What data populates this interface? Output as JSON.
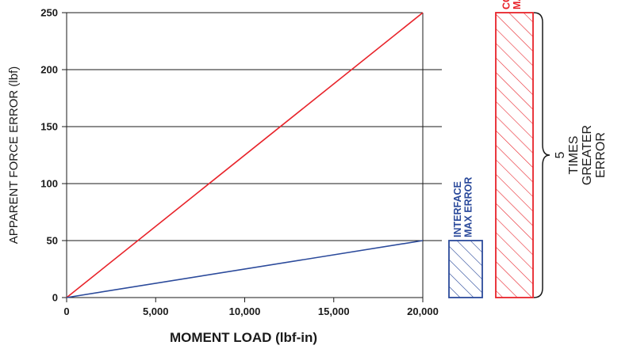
{
  "chart_data": {
    "type": "line",
    "xlabel": "MOMENT LOAD (lbf-in)",
    "ylabel": "APPARENT FORCE ERROR  (lbf)",
    "xlim": [
      0,
      20000
    ],
    "ylim": [
      0,
      250
    ],
    "x_ticks": [
      0,
      5000,
      10000,
      15000,
      20000
    ],
    "x_tick_labels": [
      "0",
      "5,000",
      "10,000",
      "15,000",
      "20,000"
    ],
    "y_ticks": [
      0,
      50,
      100,
      150,
      200,
      250
    ],
    "y_tick_labels": [
      "0",
      "50",
      "100",
      "150",
      "200",
      "250"
    ],
    "grid": "horizontal",
    "series": [
      {
        "color": "#e8232a",
        "x": [
          0,
          20000
        ],
        "y": [
          0,
          250
        ]
      },
      {
        "color": "#2b4a9b",
        "x": [
          0,
          20000
        ],
        "y": [
          0,
          50
        ]
      }
    ],
    "bars": [
      {
        "label_lines": [
          "INTERFACE",
          "MAX ERROR"
        ],
        "value": 50,
        "color": "#2b4a9b",
        "fill": "hatched"
      },
      {
        "label_lines": [
          "COMPETITOR",
          "MAX ERROR"
        ],
        "value": 250,
        "color": "#e8232a",
        "fill": "hatched"
      }
    ],
    "annotation": {
      "lines": [
        "5",
        "TIMES",
        "GREATER",
        "ERROR"
      ],
      "style": "brace"
    }
  }
}
